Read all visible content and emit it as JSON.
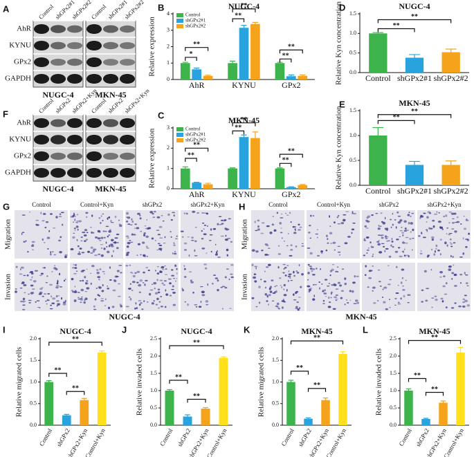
{
  "chart_data": [
    {
      "letter": "B",
      "type": "bar",
      "title": "NUGC-4",
      "y_label": "Relative expression",
      "categories": [
        "AhR",
        "KYNU",
        "GPx2"
      ],
      "series": [
        {
          "name": "Control",
          "color": "#3cb44b",
          "values": [
            1.0,
            1.0,
            1.0
          ],
          "errors": [
            0.05,
            0.12,
            0.05
          ]
        },
        {
          "name": "shGPx2#1",
          "color": "#29a3de",
          "values": [
            0.62,
            3.15,
            0.2
          ],
          "errors": [
            0.08,
            0.15,
            0.08
          ]
        },
        {
          "name": "shGPx2#2",
          "color": "#f5a31a",
          "values": [
            0.22,
            3.38,
            0.22
          ],
          "errors": [
            0.04,
            0.1,
            0.06
          ]
        }
      ],
      "ylim": [
        0,
        4
      ],
      "yticks": [
        0,
        1,
        2,
        3,
        4
      ],
      "legend": "upper left",
      "annotations": [
        "*",
        "**",
        "**",
        "**",
        "**",
        "**"
      ]
    },
    {
      "letter": "C",
      "type": "bar",
      "title": "MKN-45",
      "y_label": "Relative expression",
      "categories": [
        "AhR",
        "KYNU",
        "GPx2"
      ],
      "series": [
        {
          "name": "Control",
          "color": "#3cb44b",
          "values": [
            1.0,
            1.0,
            1.0
          ],
          "errors": [
            0.08,
            0.03,
            0.03
          ]
        },
        {
          "name": "shGPx2#1",
          "color": "#29a3de",
          "values": [
            0.3,
            2.55,
            0.08
          ],
          "errors": [
            0.02,
            0.1,
            0.02
          ]
        },
        {
          "name": "shGPx2#2",
          "color": "#f5a31a",
          "values": [
            0.22,
            2.5,
            0.18
          ],
          "errors": [
            0.05,
            0.3,
            0.03
          ]
        }
      ],
      "ylim": [
        0,
        3
      ],
      "yticks": [
        0,
        1,
        2,
        3
      ],
      "legend": "upper left",
      "annotations": [
        "**",
        "**",
        "**",
        "**",
        "**",
        "**"
      ]
    },
    {
      "letter": "D",
      "type": "bar",
      "title": "NUGC-4",
      "y_label": "Relative Kyn concentration",
      "categories": [
        "Control",
        "shGPx2#1",
        "shGPx2#2"
      ],
      "values": [
        1.0,
        0.38,
        0.52
      ],
      "errors": [
        0.02,
        0.08,
        0.08
      ],
      "colors": [
        "#3cb44b",
        "#29a3de",
        "#f5a31a"
      ],
      "ylim": [
        0,
        1.5
      ],
      "yticks": [
        {
          "value": 0,
          "label": "0.0"
        },
        0.5,
        {
          "value": 1,
          "label": "1.0"
        },
        1.5
      ],
      "annotations": [
        "**",
        "**"
      ]
    },
    {
      "letter": "E",
      "type": "bar",
      "title": "MKN-45",
      "y_label": "Relative Kyn concentration",
      "categories": [
        "Control",
        "shGPx2#1",
        "shGPx2#2"
      ],
      "values": [
        1.0,
        0.41,
        0.41
      ],
      "errors": [
        0.16,
        0.07,
        0.08
      ],
      "colors": [
        "#3cb44b",
        "#29a3de",
        "#f5a31a"
      ],
      "ylim": [
        0,
        1.5
      ],
      "yticks": [
        {
          "value": 0,
          "label": "0.0"
        },
        0.5,
        {
          "value": 1,
          "label": "1.0"
        },
        1.5
      ],
      "annotations": [
        "**",
        "**"
      ]
    },
    {
      "letter": "I",
      "type": "bar",
      "title": "NUGC-4",
      "y_label": "Relative migrated cells",
      "categories": [
        "Control",
        "shGPx2",
        "shGPx2+Kyn",
        "Control+Kyn"
      ],
      "values": [
        1.0,
        0.23,
        0.58,
        1.68
      ],
      "errors": [
        0.03,
        0.02,
        0.04,
        0.04
      ],
      "colors": [
        "#3cb44b",
        "#29a3de",
        "#f5a31a",
        "#ffe01b"
      ],
      "ylim": [
        0,
        2
      ],
      "yticks": [
        {
          "value": 0,
          "label": "0.0"
        },
        0.5,
        {
          "value": 1,
          "label": "1.0"
        },
        1.5,
        {
          "value": 2,
          "label": "2.0"
        }
      ],
      "annotations": [
        "**",
        "**",
        "**"
      ]
    },
    {
      "letter": "J",
      "type": "bar",
      "title": "NUGC-4",
      "y_label": "Relative invaded cells",
      "categories": [
        "Control",
        "shGPx2",
        "shGPx2+Kyn",
        "Control+Kyn"
      ],
      "values": [
        1.0,
        0.25,
        0.48,
        1.95
      ],
      "errors": [
        0.03,
        0.05,
        0.03,
        0.03
      ],
      "colors": [
        "#3cb44b",
        "#29a3de",
        "#f5a31a",
        "#ffe01b"
      ],
      "ylim": [
        0,
        2.5
      ],
      "yticks": [
        {
          "value": 0,
          "label": "0.0"
        },
        0.5,
        {
          "value": 1,
          "label": "1.0"
        },
        1.5,
        {
          "value": 2,
          "label": "2.0"
        },
        2.5
      ],
      "annotations": [
        "**",
        "**",
        "**"
      ]
    },
    {
      "letter": "K",
      "type": "bar",
      "title": "MKN-45",
      "y_label": "Relative migrated cells",
      "categories": [
        "Control",
        "shGPx2",
        "shGPx2+Kyn",
        "Control+Kyn"
      ],
      "values": [
        1.0,
        0.15,
        0.58,
        1.65
      ],
      "errors": [
        0.04,
        0.02,
        0.05,
        0.05
      ],
      "colors": [
        "#3cb44b",
        "#29a3de",
        "#f5a31a",
        "#ffe01b"
      ],
      "ylim": [
        0,
        2
      ],
      "yticks": [
        {
          "value": 0,
          "label": "0.0"
        },
        0.5,
        {
          "value": 1,
          "label": "1.0"
        },
        1.5,
        {
          "value": 2,
          "label": "2.0"
        }
      ],
      "annotations": [
        "**",
        "**",
        "**"
      ]
    },
    {
      "letter": "L",
      "type": "bar",
      "title": "MKN-45",
      "y_label": "Relative invaded cells",
      "categories": [
        "Control",
        "shGPx2",
        "shGPx2+Kyn",
        "Control+Kyn"
      ],
      "values": [
        1.0,
        0.18,
        0.65,
        2.1
      ],
      "errors": [
        0.05,
        0.02,
        0.05,
        0.15
      ],
      "colors": [
        "#3cb44b",
        "#29a3de",
        "#f5a31a",
        "#ffe01b"
      ],
      "ylim": [
        0,
        2.5
      ],
      "yticks": [
        {
          "value": 0,
          "label": "0.0"
        },
        0.5,
        {
          "value": 1,
          "label": "1.0"
        },
        1.5,
        {
          "value": 2,
          "label": "2.0"
        },
        2.5
      ],
      "annotations": [
        "**",
        "**",
        "**"
      ]
    }
  ],
  "blots": [
    {
      "letter": "A",
      "row_labels": [
        "AhR",
        "KYNU",
        "GPx2",
        "GAPDH"
      ],
      "lane_labels": [
        "Control",
        "shGPx2#1",
        "shGPx2#2",
        "Control",
        "shGPx2#1",
        "shGPx2#2"
      ],
      "cell_lines": [
        "NUGC-4",
        "MKN-45"
      ]
    },
    {
      "letter": "F",
      "row_labels": [
        "AhR",
        "KYNU",
        "GPx2",
        "GAPDH"
      ],
      "lane_labels": [
        "Control",
        "shGPx2",
        "shGPx2+Kyn",
        "Control",
        "shGPx2",
        "shGPx2+Kyn"
      ],
      "cell_lines": [
        "NUGC-4",
        "MKN-45"
      ]
    }
  ],
  "micrographs": [
    {
      "letter": "G",
      "columns": [
        "Control",
        "Control+Kyn",
        "shGPx2",
        "shGPx2+Kyn"
      ],
      "rows": [
        "Migration",
        "Invasion"
      ],
      "caption": "NUGC-4"
    },
    {
      "letter": "H",
      "columns": [
        "Control",
        "Control+Kyn",
        "shGPx2",
        "shGPx2+Kyn"
      ],
      "rows": [
        "Migration",
        "Invasion"
      ],
      "caption": "MKN-45"
    }
  ]
}
